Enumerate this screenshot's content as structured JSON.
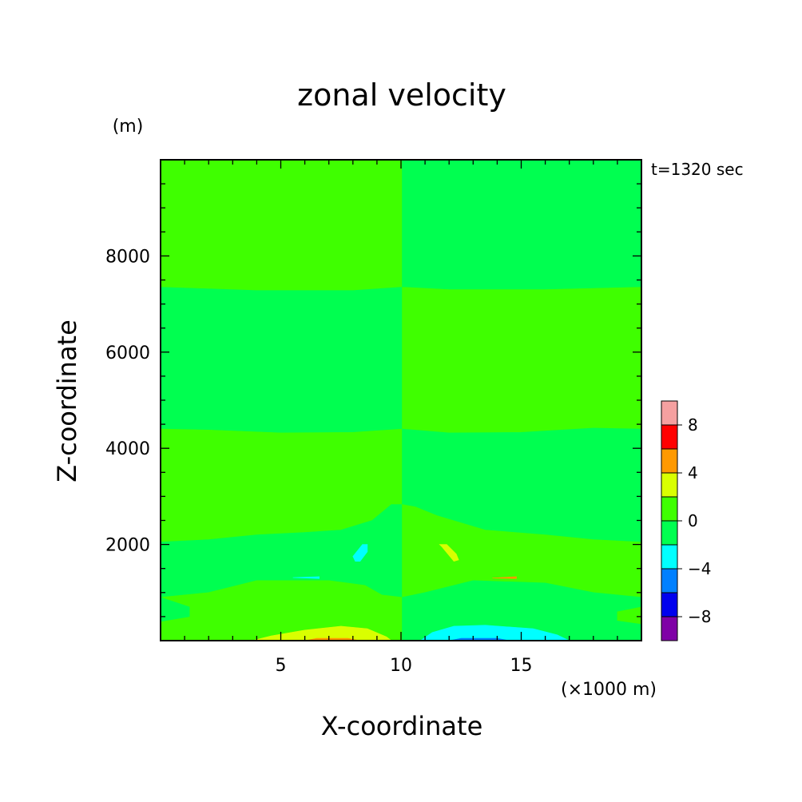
{
  "chart_data": {
    "type": "heatmap",
    "title": "zonal velocity",
    "time_label": "t=1320 sec",
    "xlabel": "X-coordinate",
    "ylabel": "Z-coordinate",
    "x_unit": "(×1000 m)",
    "y_unit": "(m)",
    "xlim": [
      0,
      20
    ],
    "ylim": [
      0,
      10000
    ],
    "x_ticks": [
      5,
      10,
      15
    ],
    "y_ticks": [
      2000,
      4000,
      6000,
      8000
    ],
    "colorbar": {
      "levels": [
        -10,
        -8,
        -6,
        -4,
        -2,
        0,
        2,
        4,
        6,
        8,
        10
      ],
      "labels": [
        -8,
        -4,
        0,
        4,
        8
      ],
      "colors": [
        "#7f00a6",
        "#0000ee",
        "#0080ff",
        "#00ffff",
        "#00ff50",
        "#3fff00",
        "#d9ff00",
        "#ff9900",
        "#ff0000",
        "#f5a0a0"
      ]
    },
    "regions": [
      {
        "name": "upper-left",
        "value": 1,
        "polygon": [
          [
            0,
            10000
          ],
          [
            10.05,
            10000
          ],
          [
            10.05,
            7350
          ],
          [
            8,
            7280
          ],
          [
            4,
            7280
          ],
          [
            0,
            7350
          ]
        ]
      },
      {
        "name": "upper-right",
        "value": -1,
        "polygon": [
          [
            10.05,
            10000
          ],
          [
            20,
            10000
          ],
          [
            20,
            7350
          ],
          [
            16,
            7300
          ],
          [
            12,
            7300
          ],
          [
            10.05,
            7350
          ]
        ]
      },
      {
        "name": "middle-left",
        "value": -1,
        "polygon": [
          [
            0,
            7350
          ],
          [
            4,
            7280
          ],
          [
            8,
            7280
          ],
          [
            10.05,
            7350
          ],
          [
            10.05,
            4400
          ],
          [
            8,
            4330
          ],
          [
            5,
            4320
          ],
          [
            2,
            4380
          ],
          [
            0,
            4400
          ]
        ]
      },
      {
        "name": "middle-right",
        "value": 1,
        "polygon": [
          [
            10.05,
            7350
          ],
          [
            12,
            7300
          ],
          [
            16,
            7300
          ],
          [
            20,
            7350
          ],
          [
            20,
            4400
          ],
          [
            18,
            4420
          ],
          [
            15,
            4330
          ],
          [
            12,
            4320
          ],
          [
            10.05,
            4400
          ]
        ]
      },
      {
        "name": "lower-left",
        "value": 1,
        "polygon": [
          [
            0,
            4400
          ],
          [
            2,
            4380
          ],
          [
            5,
            4320
          ],
          [
            8,
            4330
          ],
          [
            10.05,
            4400
          ],
          [
            10.05,
            2830
          ],
          [
            9.6,
            2830
          ],
          [
            8.8,
            2500
          ],
          [
            7.5,
            2300
          ],
          [
            6,
            2250
          ],
          [
            4,
            2200
          ],
          [
            2,
            2100
          ],
          [
            0,
            2050
          ]
        ]
      },
      {
        "name": "lower-right",
        "value": -1,
        "polygon": [
          [
            10.05,
            4400
          ],
          [
            12,
            4320
          ],
          [
            15,
            4330
          ],
          [
            18,
            4420
          ],
          [
            20,
            4400
          ],
          [
            20,
            2050
          ],
          [
            18,
            2100
          ],
          [
            16,
            2200
          ],
          [
            13.5,
            2300
          ],
          [
            11.5,
            2600
          ],
          [
            10.6,
            2780
          ],
          [
            10.05,
            2830
          ]
        ]
      },
      {
        "name": "bottom-left",
        "value": -1,
        "polygon": [
          [
            0,
            2050
          ],
          [
            2,
            2100
          ],
          [
            4,
            2200
          ],
          [
            6,
            2250
          ],
          [
            7.5,
            2300
          ],
          [
            8.8,
            2500
          ],
          [
            9.6,
            2830
          ],
          [
            10.05,
            2830
          ],
          [
            10.05,
            900
          ],
          [
            9.2,
            950
          ],
          [
            8.5,
            1150
          ],
          [
            7,
            1250
          ],
          [
            4,
            1250
          ],
          [
            2,
            1000
          ],
          [
            0,
            900
          ]
        ]
      },
      {
        "name": "bottom-right",
        "value": 1,
        "polygon": [
          [
            10.05,
            2830
          ],
          [
            10.6,
            2780
          ],
          [
            11.5,
            2600
          ],
          [
            13.5,
            2300
          ],
          [
            16,
            2200
          ],
          [
            18,
            2100
          ],
          [
            20,
            2050
          ],
          [
            20,
            900
          ],
          [
            18,
            1000
          ],
          [
            16,
            1200
          ],
          [
            13,
            1250
          ],
          [
            11,
            1000
          ],
          [
            10.05,
            900
          ]
        ]
      },
      {
        "name": "base-left",
        "value": 1,
        "polygon": [
          [
            0,
            900
          ],
          [
            1.2,
            700
          ],
          [
            1.2,
            500
          ],
          [
            0,
            400
          ],
          [
            0,
            0
          ],
          [
            10.05,
            0
          ],
          [
            10.05,
            900
          ],
          [
            9.2,
            950
          ],
          [
            8.5,
            1150
          ],
          [
            7,
            1250
          ],
          [
            4,
            1250
          ],
          [
            2,
            1000
          ]
        ]
      },
      {
        "name": "base-right",
        "value": -1,
        "polygon": [
          [
            10.05,
            900
          ],
          [
            11,
            1000
          ],
          [
            13,
            1250
          ],
          [
            16,
            1200
          ],
          [
            18,
            1000
          ],
          [
            20,
            900
          ],
          [
            20,
            700
          ],
          [
            19,
            600
          ],
          [
            19,
            420
          ],
          [
            20,
            350
          ],
          [
            20,
            0
          ],
          [
            10.05,
            0
          ]
        ]
      },
      {
        "name": "base-left-edge",
        "value": -1,
        "polygon": [
          [
            0,
            400
          ],
          [
            1.2,
            500
          ],
          [
            1.2,
            700
          ],
          [
            0,
            900
          ]
        ]
      },
      {
        "name": "base-right-edge",
        "value": 1,
        "polygon": [
          [
            20,
            350
          ],
          [
            19,
            420
          ],
          [
            19,
            600
          ],
          [
            20,
            700
          ]
        ]
      },
      {
        "name": "surface-left",
        "value": 3,
        "polygon": [
          [
            3.8,
            0
          ],
          [
            4.6,
            100
          ],
          [
            6,
            220
          ],
          [
            7.5,
            300
          ],
          [
            8.6,
            250
          ],
          [
            9.4,
            80
          ],
          [
            9.6,
            0
          ]
        ]
      },
      {
        "name": "surface-right",
        "value": -3,
        "polygon": [
          [
            10.8,
            0
          ],
          [
            11.3,
            170
          ],
          [
            12.2,
            300
          ],
          [
            13.5,
            320
          ],
          [
            15.5,
            250
          ],
          [
            16.5,
            120
          ],
          [
            17,
            0
          ]
        ]
      },
      {
        "name": "surface-left-core",
        "value": 5,
        "polygon": [
          [
            6,
            0
          ],
          [
            6.5,
            50
          ],
          [
            7.8,
            50
          ],
          [
            8.3,
            0
          ]
        ]
      },
      {
        "name": "surface-right-core",
        "value": -5,
        "polygon": [
          [
            12,
            0
          ],
          [
            12.5,
            50
          ],
          [
            14,
            50
          ],
          [
            14.5,
            0
          ]
        ]
      },
      {
        "name": "eddy-left",
        "value": -3,
        "polygon": [
          [
            8.1,
            1650
          ],
          [
            8.0,
            1750
          ],
          [
            8.4,
            2000
          ],
          [
            8.6,
            2000
          ],
          [
            8.6,
            1850
          ],
          [
            8.3,
            1650
          ]
        ]
      },
      {
        "name": "eddy-right",
        "value": 3,
        "polygon": [
          [
            11.7,
            1950
          ],
          [
            11.6,
            2000
          ],
          [
            11.9,
            2000
          ],
          [
            12.3,
            1800
          ],
          [
            12.4,
            1680
          ],
          [
            12.2,
            1650
          ]
        ]
      },
      {
        "name": "sliver-left",
        "value": -3,
        "polygon": [
          [
            5.5,
            1310
          ],
          [
            6.6,
            1330
          ],
          [
            6.6,
            1290
          ]
        ]
      },
      {
        "name": "sliver-right",
        "value": 5,
        "polygon": [
          [
            13.8,
            1300
          ],
          [
            14.8,
            1330
          ],
          [
            14.8,
            1290
          ]
        ]
      }
    ]
  }
}
